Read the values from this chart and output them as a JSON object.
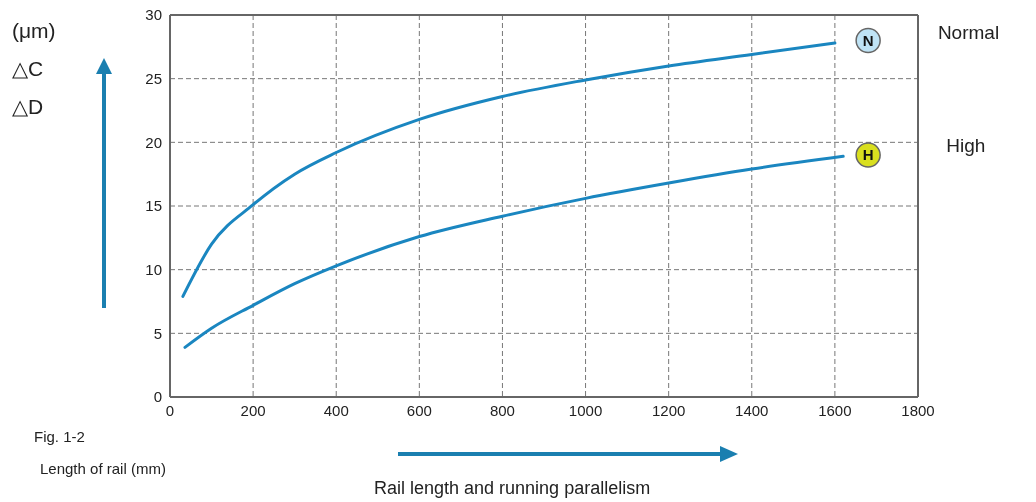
{
  "chart_data": {
    "type": "line",
    "title": "Rail length and running parallelism",
    "xlabel": "Length of rail (mm)",
    "ylabel": "(μm)\n△C\n△D",
    "annotations": [
      {
        "text": "N",
        "x": 1680,
        "y": 28
      },
      {
        "text": "H",
        "x": 1680,
        "y": 19
      },
      "Fig. 1-2"
    ],
    "series": [
      {
        "name": "Normal",
        "color": "#1a86c0",
        "x": [
          31,
          100,
          200,
          300,
          400,
          600,
          800,
          1000,
          1200,
          1400,
          1600
        ],
        "values": [
          7.9,
          12.0,
          15.1,
          17.5,
          19.2,
          21.8,
          23.6,
          24.9,
          26.0,
          26.9,
          27.8
        ]
      },
      {
        "name": "High",
        "color": "#1a86c0",
        "x": [
          36,
          100,
          200,
          300,
          400,
          600,
          800,
          1000,
          1200,
          1400,
          1620
        ],
        "values": [
          3.9,
          5.4,
          7.2,
          8.9,
          10.3,
          12.6,
          14.2,
          15.6,
          16.8,
          17.9,
          18.9
        ]
      }
    ],
    "xlim": [
      0,
      1800
    ],
    "xticks": [
      0,
      200,
      400,
      600,
      800,
      1000,
      1200,
      1400,
      1600,
      1800
    ],
    "ylim": [
      0,
      30
    ],
    "yticks": [
      0,
      5,
      10,
      15,
      20,
      25,
      30
    ],
    "grid": true,
    "marker": "none",
    "line_style": "solid"
  }
}
